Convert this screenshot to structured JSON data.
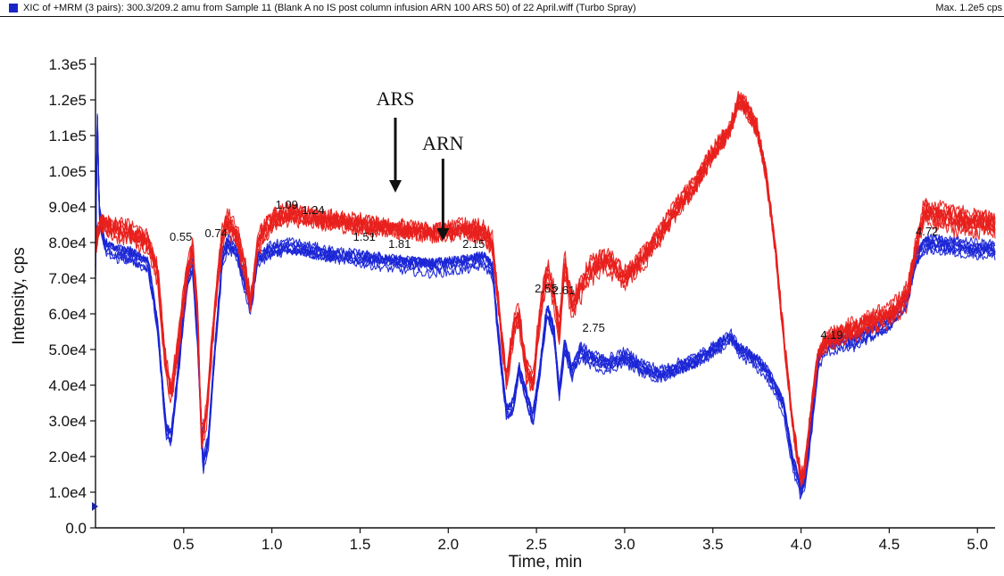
{
  "header": {
    "title": "XIC of +MRM (3 pairs): 300.3/209.2 amu from Sample 11 (Blank A no IS post column infusion ARN 100 ARS 50) of 22 April.wiff (Turbo Spray)",
    "max_label": "Max. 1.2e5 cps"
  },
  "chart_data": {
    "type": "line",
    "title": "",
    "xlabel": "Time, min",
    "ylabel": "Intensity, cps",
    "xlim": [
      0,
      5.1
    ],
    "ylim": [
      0,
      130000
    ],
    "x_ticks": [
      {
        "v": 0.5,
        "label": "0.5"
      },
      {
        "v": 1.0,
        "label": "1.0"
      },
      {
        "v": 1.5,
        "label": "1.5"
      },
      {
        "v": 2.0,
        "label": "2.0"
      },
      {
        "v": 2.5,
        "label": "2.5"
      },
      {
        "v": 3.0,
        "label": "3.0"
      },
      {
        "v": 3.5,
        "label": "3.5"
      },
      {
        "v": 4.0,
        "label": "4.0"
      },
      {
        "v": 4.5,
        "label": "4.5"
      },
      {
        "v": 5.0,
        "label": "5.0"
      }
    ],
    "y_ticks": [
      {
        "v": 0,
        "label": "0.0"
      },
      {
        "v": 10000,
        "label": "1.0e4"
      },
      {
        "v": 20000,
        "label": "2.0e4"
      },
      {
        "v": 30000,
        "label": "3.0e4"
      },
      {
        "v": 40000,
        "label": "4.0e4"
      },
      {
        "v": 50000,
        "label": "5.0e4"
      },
      {
        "v": 60000,
        "label": "6.0e4"
      },
      {
        "v": 70000,
        "label": "7.0e4"
      },
      {
        "v": 80000,
        "label": "8.0e4"
      },
      {
        "v": 90000,
        "label": "9.0e4"
      },
      {
        "v": 100000,
        "label": "1.0e5"
      },
      {
        "v": 110000,
        "label": "1.1e5"
      },
      {
        "v": 120000,
        "label": "1.2e5"
      },
      {
        "v": 130000,
        "label": "1.3e5"
      }
    ],
    "colors": {
      "red_traces": "#e8201c",
      "blue_traces": "#1a25d6"
    },
    "series": [
      {
        "color": "#e8201c",
        "replicates": 8,
        "x": [
          0.0,
          0.03,
          0.1,
          0.2,
          0.3,
          0.35,
          0.4,
          0.43,
          0.47,
          0.52,
          0.55,
          0.58,
          0.6,
          0.63,
          0.67,
          0.72,
          0.75,
          0.8,
          0.85,
          0.88,
          0.92,
          1.0,
          1.1,
          1.2,
          1.3,
          1.5,
          1.7,
          1.9,
          2.1,
          2.2,
          2.25,
          2.3,
          2.33,
          2.37,
          2.4,
          2.44,
          2.48,
          2.52,
          2.56,
          2.6,
          2.63,
          2.66,
          2.7,
          2.8,
          2.9,
          3.0,
          3.1,
          3.2,
          3.3,
          3.4,
          3.5,
          3.6,
          3.65,
          3.7,
          3.75,
          3.8,
          3.85,
          3.9,
          3.95,
          4.0,
          4.02,
          4.05,
          4.1,
          4.15,
          4.3,
          4.5,
          4.6,
          4.65,
          4.7,
          4.75,
          4.9,
          5.1
        ],
        "y": [
          80000,
          86000,
          84000,
          83000,
          80000,
          72000,
          45000,
          38000,
          52000,
          72000,
          78000,
          60000,
          24000,
          32000,
          58000,
          82000,
          86000,
          82000,
          72000,
          62000,
          80000,
          86000,
          88000,
          87000,
          86000,
          85000,
          84000,
          83000,
          84000,
          83000,
          80000,
          55000,
          42000,
          56000,
          60000,
          45000,
          40000,
          60000,
          72000,
          65000,
          55000,
          74000,
          62000,
          72000,
          75000,
          70000,
          75000,
          82000,
          90000,
          96000,
          105000,
          112000,
          120000,
          117000,
          112000,
          100000,
          80000,
          55000,
          30000,
          14000,
          16000,
          30000,
          50000,
          53000,
          56000,
          60000,
          65000,
          78000,
          89000,
          88000,
          86000,
          85000
        ]
      },
      {
        "color": "#1a25d6",
        "replicates": 8,
        "x": [
          0.0,
          0.01,
          0.02,
          0.05,
          0.1,
          0.2,
          0.3,
          0.35,
          0.4,
          0.43,
          0.47,
          0.52,
          0.55,
          0.58,
          0.61,
          0.64,
          0.68,
          0.72,
          0.75,
          0.8,
          0.85,
          0.88,
          0.92,
          1.0,
          1.1,
          1.2,
          1.3,
          1.5,
          1.7,
          1.9,
          2.1,
          2.2,
          2.25,
          2.3,
          2.33,
          2.37,
          2.4,
          2.44,
          2.48,
          2.52,
          2.56,
          2.6,
          2.63,
          2.66,
          2.7,
          2.75,
          2.8,
          2.9,
          3.0,
          3.1,
          3.2,
          3.3,
          3.4,
          3.5,
          3.6,
          3.65,
          3.7,
          3.8,
          3.9,
          3.95,
          4.0,
          4.02,
          4.05,
          4.1,
          4.15,
          4.3,
          4.5,
          4.6,
          4.65,
          4.7,
          4.75,
          4.9,
          5.1
        ],
        "y": [
          72000,
          118000,
          90000,
          80000,
          78000,
          77000,
          74000,
          58000,
          28000,
          26000,
          45000,
          70000,
          74000,
          52000,
          18000,
          25000,
          52000,
          76000,
          80000,
          78000,
          68000,
          62000,
          76000,
          78000,
          79000,
          78000,
          77000,
          76000,
          75000,
          74000,
          75000,
          76000,
          73000,
          46000,
          33000,
          35000,
          45000,
          38000,
          31000,
          45000,
          62000,
          55000,
          38000,
          52000,
          44000,
          50000,
          48000,
          46000,
          48000,
          45000,
          43000,
          45000,
          47000,
          50000,
          54000,
          50000,
          49000,
          45000,
          35000,
          20000,
          11000,
          13000,
          25000,
          48000,
          52000,
          53000,
          58000,
          64000,
          76000,
          80000,
          80000,
          79000,
          78000
        ]
      }
    ],
    "peak_labels": [
      {
        "label": "0.55",
        "x": 0.42,
        "y": 80500
      },
      {
        "label": "0.74",
        "x": 0.62,
        "y": 81500
      },
      {
        "label": "1.09",
        "x": 1.02,
        "y": 89500
      },
      {
        "label": "1.24",
        "x": 1.17,
        "y": 88000
      },
      {
        "label": "1.51",
        "x": 1.46,
        "y": 80500
      },
      {
        "label": "1.81",
        "x": 1.66,
        "y": 78500
      },
      {
        "label": "2.15",
        "x": 2.08,
        "y": 78500
      },
      {
        "label": "2.55",
        "x": 2.49,
        "y": 66000
      },
      {
        "label": "2.61",
        "x": 2.59,
        "y": 65500
      },
      {
        "label": "2.75",
        "x": 2.76,
        "y": 55000
      },
      {
        "label": "4.19",
        "x": 4.11,
        "y": 53000
      },
      {
        "label": "4.72",
        "x": 4.65,
        "y": 82000
      }
    ],
    "annotations": [
      {
        "label": "ARS",
        "x": 1.7,
        "text_y": 118500,
        "arrow_from_y": 115000,
        "arrow_to_y": 94000
      },
      {
        "label": "ARN",
        "x": 1.97,
        "text_y": 106000,
        "arrow_from_y": 103500,
        "arrow_to_y": 80500
      }
    ]
  }
}
